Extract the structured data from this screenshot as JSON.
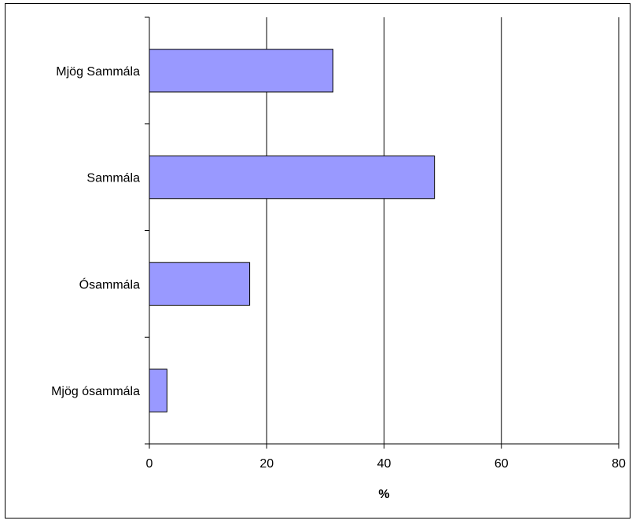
{
  "chart_data": {
    "type": "bar",
    "orientation": "horizontal",
    "categories": [
      "Mjög Sammála",
      "Sammála",
      "Ósammála",
      "Mjög ósammála"
    ],
    "values": [
      31.3,
      48.6,
      17.1,
      3.0
    ],
    "xlabel": "%",
    "ylabel": "",
    "xlim": [
      0,
      80
    ],
    "xticks": [
      0,
      20,
      40,
      60,
      80
    ],
    "xtick_labels": [
      "0",
      "20",
      "40",
      "60",
      "80"
    ],
    "grid": "vertical gridlines on",
    "legend": "none",
    "colors": {
      "bar_fill": "#9999ff",
      "bar_stroke": "#000000",
      "gridline": "#000000",
      "background": "#ffffff"
    }
  }
}
